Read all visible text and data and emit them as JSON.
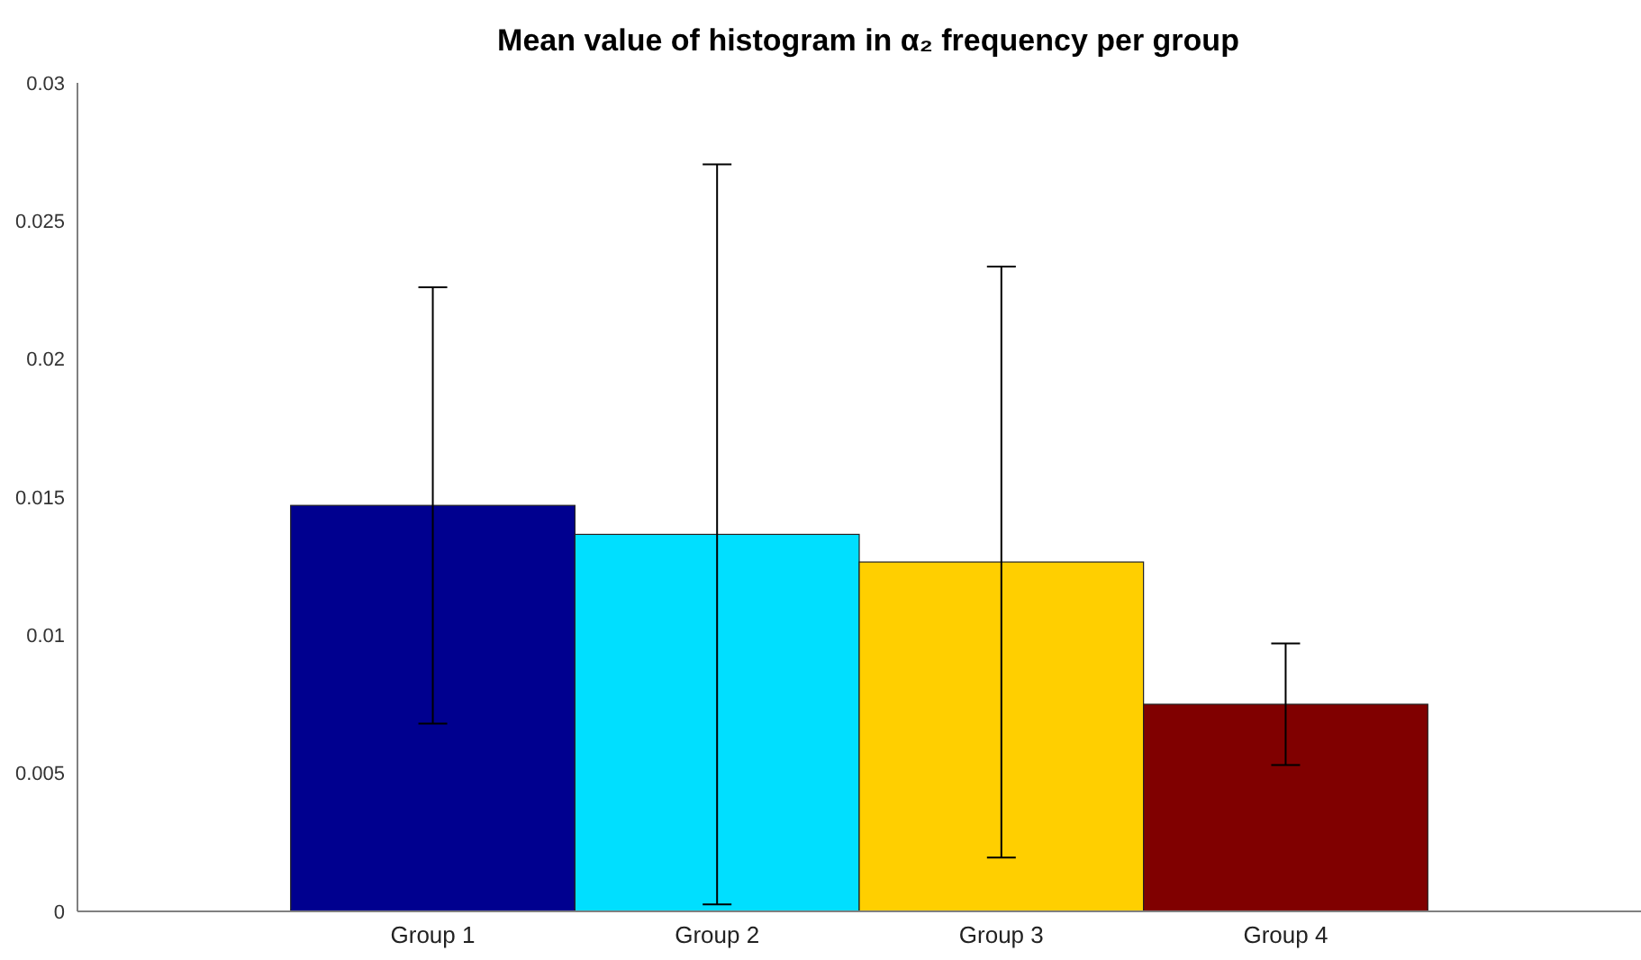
{
  "chart_data": {
    "type": "bar",
    "title": "Mean value of histogram in α₂ frequency per group",
    "categories": [
      "Group 1",
      "Group 2",
      "Group 3",
      "Group 4"
    ],
    "values": [
      0.0147,
      0.01365,
      0.01265,
      0.0075
    ],
    "colors": [
      "#00008f",
      "#00dfff",
      "#ffcf00",
      "#800000"
    ],
    "errors": [
      0.0079,
      0.0134,
      0.0107,
      0.0022
    ],
    "ylim": [
      0,
      0.03
    ],
    "yticks": [
      0,
      0.005,
      0.01,
      0.015,
      0.02,
      0.025,
      0.03
    ]
  }
}
